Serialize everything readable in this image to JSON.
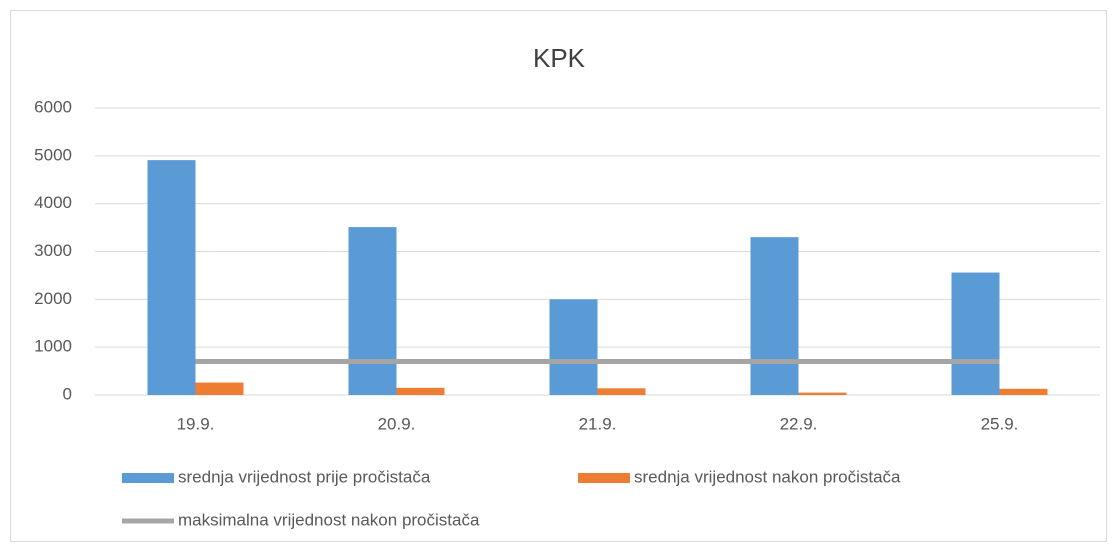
{
  "chart_data": {
    "type": "bar",
    "title": "KPK",
    "categories": [
      "19.9.",
      "20.9.",
      "21.9.",
      "22.9.",
      "25.9."
    ],
    "series": [
      {
        "name": "srednja vrijednost prije pročistača",
        "color": "#5b9bd5",
        "values": [
          4910,
          3510,
          2000,
          3300,
          2560
        ]
      },
      {
        "name": "srednja vrijednost nakon pročistača",
        "color": "#ed7d31",
        "values": [
          260,
          150,
          140,
          50,
          130
        ]
      },
      {
        "name": "maksimalna vrijednost nakon pročistača",
        "color": "#a5a5a5",
        "type": "line",
        "values": [
          700,
          700,
          700,
          700,
          700
        ]
      }
    ],
    "ylim": [
      0,
      6000
    ],
    "yticks": [
      0,
      1000,
      2000,
      3000,
      4000,
      5000,
      6000
    ],
    "grid": true
  }
}
